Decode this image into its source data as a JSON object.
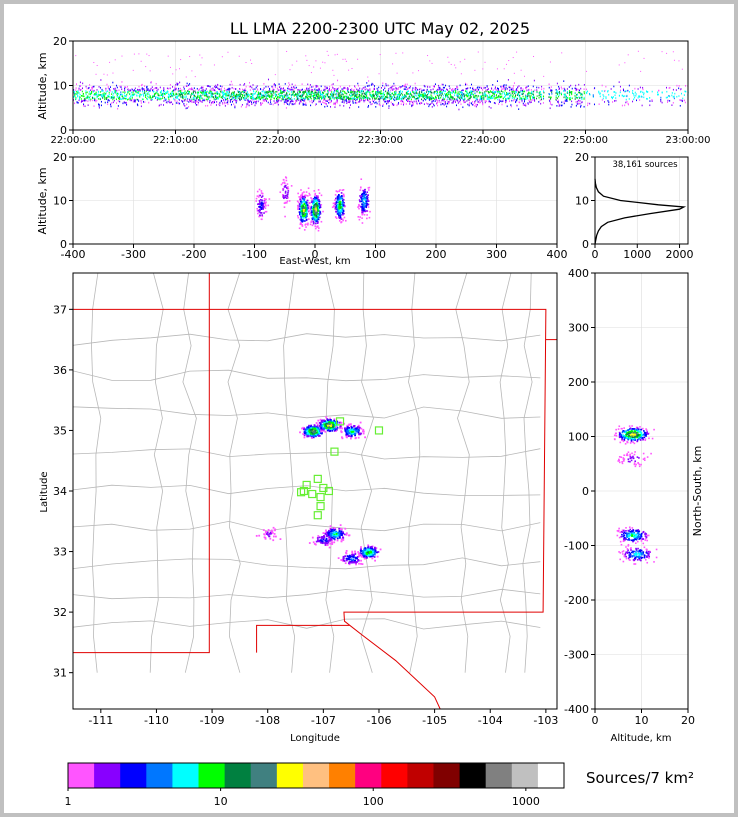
{
  "chart_data": [
    {
      "id": "time_height",
      "type": "scatter",
      "title": "LL LMA 2200-2300 UTC May 02, 2025",
      "xlabel": "",
      "ylabel": "Altitude, km",
      "x_ticks": [
        "22:00:00",
        "22:10:00",
        "22:20:00",
        "22:30:00",
        "22:40:00",
        "22:50:00",
        "23:00:00"
      ],
      "xlim_minutes": [
        0,
        60
      ],
      "ylim": [
        0,
        20
      ],
      "y_ticks": [
        0,
        10,
        20
      ],
      "band": {
        "center_alt_km": 8,
        "density_by_10min": [
          0.7,
          0.85,
          1.0,
          0.9,
          0.8,
          0.3
        ]
      }
    },
    {
      "id": "east_west_altitude",
      "type": "scatter",
      "xlabel": "East-West, km",
      "ylabel": "Altitude, km",
      "xlim": [
        -400,
        400
      ],
      "x_ticks": [
        -400,
        -300,
        -200,
        -100,
        0,
        100,
        200,
        300,
        400
      ],
      "ylim": [
        0,
        20
      ],
      "y_ticks": [
        0,
        10,
        20
      ],
      "clusters": [
        {
          "x": -20,
          "alt": 8,
          "strength": 0.9
        },
        {
          "x": 0,
          "alt": 8,
          "strength": 1.0
        },
        {
          "x": 40,
          "alt": 9,
          "strength": 0.7
        },
        {
          "x": 80,
          "alt": 10,
          "strength": 0.5
        },
        {
          "x": -90,
          "alt": 9,
          "strength": 0.3
        },
        {
          "x": -50,
          "alt": 12,
          "strength": 0.2
        }
      ]
    },
    {
      "id": "altitude_histogram",
      "type": "line",
      "annotation": "38,161 sources",
      "xlim": [
        0,
        2200
      ],
      "x_ticks": [
        0,
        1000,
        2000
      ],
      "ylim": [
        0,
        20
      ],
      "y_ticks": [
        0,
        10,
        20
      ],
      "profile": [
        [
          0,
          0
        ],
        [
          20,
          1
        ],
        [
          40,
          2
        ],
        [
          80,
          3
        ],
        [
          150,
          4
        ],
        [
          300,
          5
        ],
        [
          700,
          6
        ],
        [
          1300,
          7
        ],
        [
          2000,
          8
        ],
        [
          2100,
          8.5
        ],
        [
          1500,
          9
        ],
        [
          600,
          10
        ],
        [
          200,
          11
        ],
        [
          80,
          12
        ],
        [
          30,
          13
        ],
        [
          10,
          14
        ],
        [
          0,
          15
        ]
      ]
    },
    {
      "id": "plan_view",
      "type": "scatter",
      "xlabel": "Longitude",
      "ylabel": "Latitude",
      "xlim": [
        -111.5,
        -102.8
      ],
      "x_ticks": [
        -111,
        -110,
        -109,
        -108,
        -107,
        -106,
        -105,
        -104,
        -103
      ],
      "ylim": [
        30.4,
        37.6
      ],
      "y_ticks": [
        31,
        32,
        33,
        34,
        35,
        36,
        37
      ],
      "clusters": [
        {
          "lon": -107.2,
          "lat": 35.0,
          "strength": 0.9
        },
        {
          "lon": -106.9,
          "lat": 35.1,
          "strength": 1.0
        },
        {
          "lon": -106.5,
          "lat": 35.0,
          "strength": 0.6
        },
        {
          "lon": -106.8,
          "lat": 33.3,
          "strength": 0.6
        },
        {
          "lon": -106.2,
          "lat": 33.0,
          "strength": 0.7
        },
        {
          "lon": -106.5,
          "lat": 32.9,
          "strength": 0.4
        },
        {
          "lon": -107.0,
          "lat": 33.2,
          "strength": 0.3
        },
        {
          "lon": -108.0,
          "lat": 33.3,
          "strength": 0.15
        }
      ],
      "stations": [
        {
          "lon": -107.1,
          "lat": 34.2
        },
        {
          "lon": -107.0,
          "lat": 34.05
        },
        {
          "lon": -107.05,
          "lat": 33.9
        },
        {
          "lon": -106.9,
          "lat": 34.0
        },
        {
          "lon": -107.2,
          "lat": 33.95
        },
        {
          "lon": -107.35,
          "lat": 34.0
        },
        {
          "lon": -107.3,
          "lat": 34.1
        },
        {
          "lon": -107.1,
          "lat": 33.6
        },
        {
          "lon": -107.05,
          "lat": 33.75
        },
        {
          "lon": -106.8,
          "lat": 34.65
        },
        {
          "lon": -106.0,
          "lat": 35.0
        },
        {
          "lon": -106.7,
          "lat": 35.15
        },
        {
          "lon": -107.4,
          "lat": 33.98
        }
      ]
    },
    {
      "id": "altitude_north_south",
      "type": "scatter",
      "xlabel": "Altitude, km",
      "ylabel": "North-South, km",
      "xlim": [
        0,
        20
      ],
      "x_ticks": [
        0,
        10,
        20
      ],
      "ylim": [
        -400,
        400
      ],
      "y_ticks": [
        -400,
        -300,
        -200,
        -100,
        0,
        100,
        200,
        300,
        400
      ],
      "clusters": [
        {
          "alt": 8,
          "y": 105,
          "strength": 1.0
        },
        {
          "alt": 8,
          "y": 60,
          "strength": 0.2
        },
        {
          "alt": 8,
          "y": -80,
          "strength": 0.6
        },
        {
          "alt": 9,
          "y": -115,
          "strength": 0.5
        }
      ]
    }
  ],
  "colorbar": {
    "label": "Sources/7 km²",
    "tick_labels": [
      "1",
      "10",
      "100",
      "1000"
    ],
    "colors": [
      "#ff55ff",
      "#8800ff",
      "#0000ff",
      "#0077ff",
      "#00ffff",
      "#00ff00",
      "#008040",
      "#408080",
      "#ffff00",
      "#ffc080",
      "#ff8000",
      "#ff0080",
      "#ff0000",
      "#c00000",
      "#800000",
      "#000000",
      "#808080",
      "#c0c0c0",
      "#ffffff"
    ]
  }
}
